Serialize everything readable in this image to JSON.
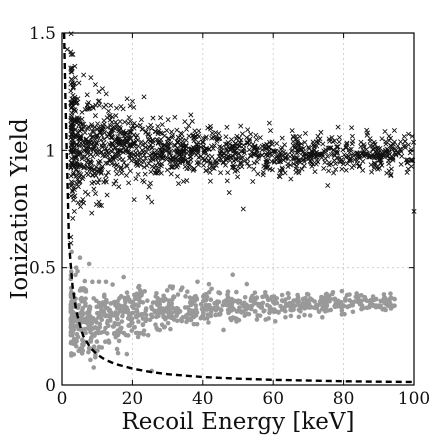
{
  "chart_data": {
    "type": "scatter",
    "xlabel": "Recoil Energy [keV]",
    "ylabel": "Ionization Yield",
    "xlim": [
      0,
      100
    ],
    "ylim": [
      0,
      1.5
    ],
    "x_ticks": [
      "0",
      "20",
      "40",
      "60",
      "80",
      "100"
    ],
    "y_ticks": [
      "0",
      "0.5",
      "1",
      "1.5"
    ],
    "grid": true,
    "legend": "none",
    "series": [
      {
        "marker": "x",
        "color": "#111111",
        "count_estimate": 1400,
        "band": [
          [
            3,
            1.07,
            0.18
          ],
          [
            5,
            1.03,
            0.14
          ],
          [
            8,
            1.02,
            0.11
          ],
          [
            12,
            1.01,
            0.09
          ],
          [
            18,
            1.01,
            0.075
          ],
          [
            25,
            1.0,
            0.065
          ],
          [
            35,
            1.0,
            0.055
          ],
          [
            45,
            0.99,
            0.05
          ],
          [
            55,
            0.99,
            0.045
          ],
          [
            65,
            0.985,
            0.04
          ],
          [
            75,
            0.98,
            0.04
          ],
          [
            90,
            0.98,
            0.04
          ],
          [
            100,
            0.98,
            0.04
          ]
        ],
        "points": [
          [
            1.5,
            1.43
          ],
          [
            2.5,
            1.35
          ],
          [
            3.2,
            1.28
          ],
          [
            4.5,
            1.22
          ],
          [
            8.2,
            1.31
          ],
          [
            9.5,
            1.28
          ],
          [
            10.5,
            1.25
          ],
          [
            15.5,
            1.18
          ],
          [
            18.5,
            1.22
          ],
          [
            2.5,
            0.63
          ],
          [
            3.5,
            0.74
          ],
          [
            5.5,
            0.78
          ],
          [
            10.5,
            0.78
          ],
          [
            20.5,
            0.79
          ],
          [
            24.5,
            0.8
          ],
          [
            25.5,
            0.78
          ],
          [
            47.5,
            0.82
          ],
          [
            51.5,
            0.75
          ],
          [
            75.5,
            0.85
          ],
          [
            79.5,
            0.92
          ],
          [
            82.5,
            1.06
          ],
          [
            85.5,
            0.99
          ],
          [
            90.5,
            0.97
          ],
          [
            94.5,
            0.99
          ],
          [
            97.5,
            1.02
          ],
          [
            99.5,
            1.06
          ],
          [
            100,
            0.74
          ]
        ]
      },
      {
        "marker": "o",
        "color": "#999999",
        "count_estimate": 900,
        "band": [
          [
            3,
            0.3,
            0.09
          ],
          [
            5,
            0.28,
            0.08
          ],
          [
            8,
            0.26,
            0.07
          ],
          [
            12,
            0.28,
            0.06
          ],
          [
            18,
            0.3,
            0.05
          ],
          [
            25,
            0.31,
            0.045
          ],
          [
            35,
            0.32,
            0.04
          ],
          [
            45,
            0.33,
            0.035
          ],
          [
            55,
            0.34,
            0.03
          ],
          [
            65,
            0.34,
            0.025
          ],
          [
            75,
            0.35,
            0.025
          ],
          [
            90,
            0.35,
            0.02
          ]
        ],
        "points": [
          [
            7.5,
            0.14
          ],
          [
            9.5,
            0.13
          ],
          [
            10.5,
            0.44
          ],
          [
            12.5,
            0.44
          ],
          [
            25.5,
            0.06
          ],
          [
            38.5,
            0.44
          ],
          [
            42.5,
            0.41
          ],
          [
            48.5,
            0.47
          ],
          [
            52.5,
            0.43
          ],
          [
            60.5,
            0.37
          ],
          [
            62.5,
            0.36
          ],
          [
            65.5,
            0.33
          ],
          [
            68.5,
            0.34
          ],
          [
            72.5,
            0.34
          ],
          [
            79.5,
            0.4
          ],
          [
            80.5,
            0.36
          ],
          [
            87.5,
            0.34
          ],
          [
            88.5,
            0.34
          ],
          [
            92.5,
            0.36
          ]
        ]
      },
      {
        "type": "line",
        "style": "dashed",
        "color": "#000000",
        "curve": [
          [
            0.6,
            1.5
          ],
          [
            1.0,
            1.2
          ],
          [
            2.0,
            0.6
          ],
          [
            3.0,
            0.42
          ],
          [
            4.0,
            0.32
          ],
          [
            5.0,
            0.26
          ],
          [
            6.0,
            0.21
          ],
          [
            8.0,
            0.16
          ],
          [
            10.0,
            0.13
          ],
          [
            12.0,
            0.11
          ],
          [
            15.0,
            0.09
          ],
          [
            20.0,
            0.07
          ],
          [
            25.0,
            0.056
          ],
          [
            30.0,
            0.046
          ],
          [
            40.0,
            0.034
          ],
          [
            50.0,
            0.027
          ],
          [
            60.0,
            0.022
          ],
          [
            70.0,
            0.019
          ],
          [
            80.0,
            0.016
          ],
          [
            90.0,
            0.014
          ],
          [
            100.0,
            0.013
          ]
        ]
      }
    ]
  }
}
